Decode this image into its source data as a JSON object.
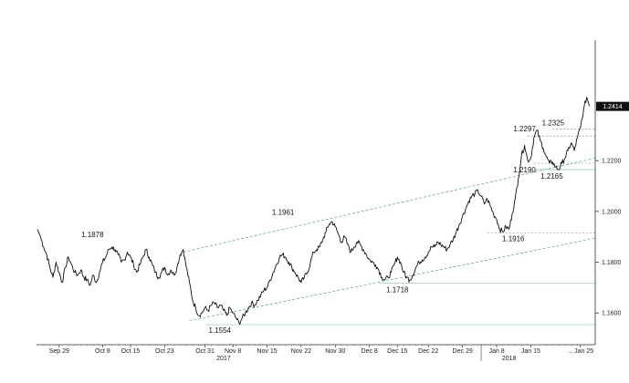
{
  "chart_data": {
    "type": "line",
    "title": "",
    "xlabel": "",
    "ylabel": "",
    "x_tick_labels": [
      "Sep 29",
      "Oct 8",
      "Oct 15",
      "Oct 23",
      "Oct 31",
      "Nov 8",
      "Nov 15",
      "Nov 22",
      "Nov 30",
      "Dec 8",
      "Dec 15",
      "Dec 22",
      "Dec 29",
      "Jan 8",
      "Jan 15",
      "... Jan 25"
    ],
    "x_year_labels": [
      "2017",
      "2018"
    ],
    "y_ticks": [
      1.16,
      1.18,
      1.2,
      1.22
    ],
    "y_tick_labels": [
      "1.1600",
      "1.1800",
      "1.2000",
      "1.2200"
    ],
    "ylim": [
      1.1475,
      1.2675
    ],
    "last_value_label": "1.2414",
    "grid": false,
    "series": [
      {
        "values": [
          1.193,
          1.19,
          1.186,
          1.183,
          1.178,
          1.174,
          1.18,
          1.176,
          1.172,
          1.178,
          1.182,
          1.179,
          1.176,
          1.175,
          1.177,
          1.174,
          1.173,
          1.171,
          1.175,
          1.172,
          1.176,
          1.18,
          1.182,
          1.185,
          1.186,
          1.185,
          1.183,
          1.18,
          1.181,
          1.184,
          1.182,
          1.179,
          1.176,
          1.179,
          1.182,
          1.185,
          1.182,
          1.179,
          1.176,
          1.174,
          1.176,
          1.178,
          1.175,
          1.177,
          1.175,
          1.178,
          1.183,
          1.185,
          1.178,
          1.172,
          1.165,
          1.162,
          1.159,
          1.16,
          1.162,
          1.161,
          1.163,
          1.164,
          1.162,
          1.163,
          1.161,
          1.159,
          1.162,
          1.16,
          1.158,
          1.156,
          1.158,
          1.16,
          1.162,
          1.164,
          1.163,
          1.165,
          1.167,
          1.169,
          1.17,
          1.173,
          1.176,
          1.179,
          1.182,
          1.183,
          1.182,
          1.18,
          1.178,
          1.176,
          1.174,
          1.172,
          1.174,
          1.176,
          1.18,
          1.184,
          1.185,
          1.186,
          1.189,
          1.192,
          1.195,
          1.196,
          1.194,
          1.191,
          1.188,
          1.19,
          1.187,
          1.184,
          1.186,
          1.188,
          1.187,
          1.185,
          1.183,
          1.181,
          1.18,
          1.179,
          1.177,
          1.174,
          1.173,
          1.174,
          1.176,
          1.179,
          1.182,
          1.18,
          1.176,
          1.174,
          1.173,
          1.175,
          1.178,
          1.18,
          1.181,
          1.182,
          1.184,
          1.186,
          1.186,
          1.188,
          1.187,
          1.186,
          1.185,
          1.187,
          1.189,
          1.192,
          1.195,
          1.198,
          1.201,
          1.204,
          1.206,
          1.207,
          1.208,
          1.206,
          1.203,
          1.205,
          1.202,
          1.199,
          1.197,
          1.193,
          1.192,
          1.194,
          1.193,
          1.199,
          1.205,
          1.213,
          1.222,
          1.226,
          1.22,
          1.221,
          1.229,
          1.232,
          1.228,
          1.225,
          1.2215,
          1.219,
          1.2195,
          1.2175,
          1.2165,
          1.219,
          1.221,
          1.224,
          1.227,
          1.224,
          1.229,
          1.233,
          1.24,
          1.245,
          1.2414
        ]
      }
    ],
    "annotations": [
      {
        "label": "1.1878",
        "value": 1.1878
      },
      {
        "label": "1.1554",
        "value": 1.1554
      },
      {
        "label": "1.1961",
        "value": 1.1961
      },
      {
        "label": "1.1718",
        "value": 1.1718
      },
      {
        "label": "1.1916",
        "value": 1.1916
      },
      {
        "label": "1.2297",
        "value": 1.2297
      },
      {
        "label": "1.2325",
        "value": 1.2325
      },
      {
        "label": "1.2190",
        "value": 1.219
      },
      {
        "label": "1.2165",
        "value": 1.2165
      }
    ],
    "colors": {
      "line": "#111111",
      "trend": "#5aa08c",
      "level": "#9ccfbf",
      "last_badge": "#111111"
    }
  }
}
